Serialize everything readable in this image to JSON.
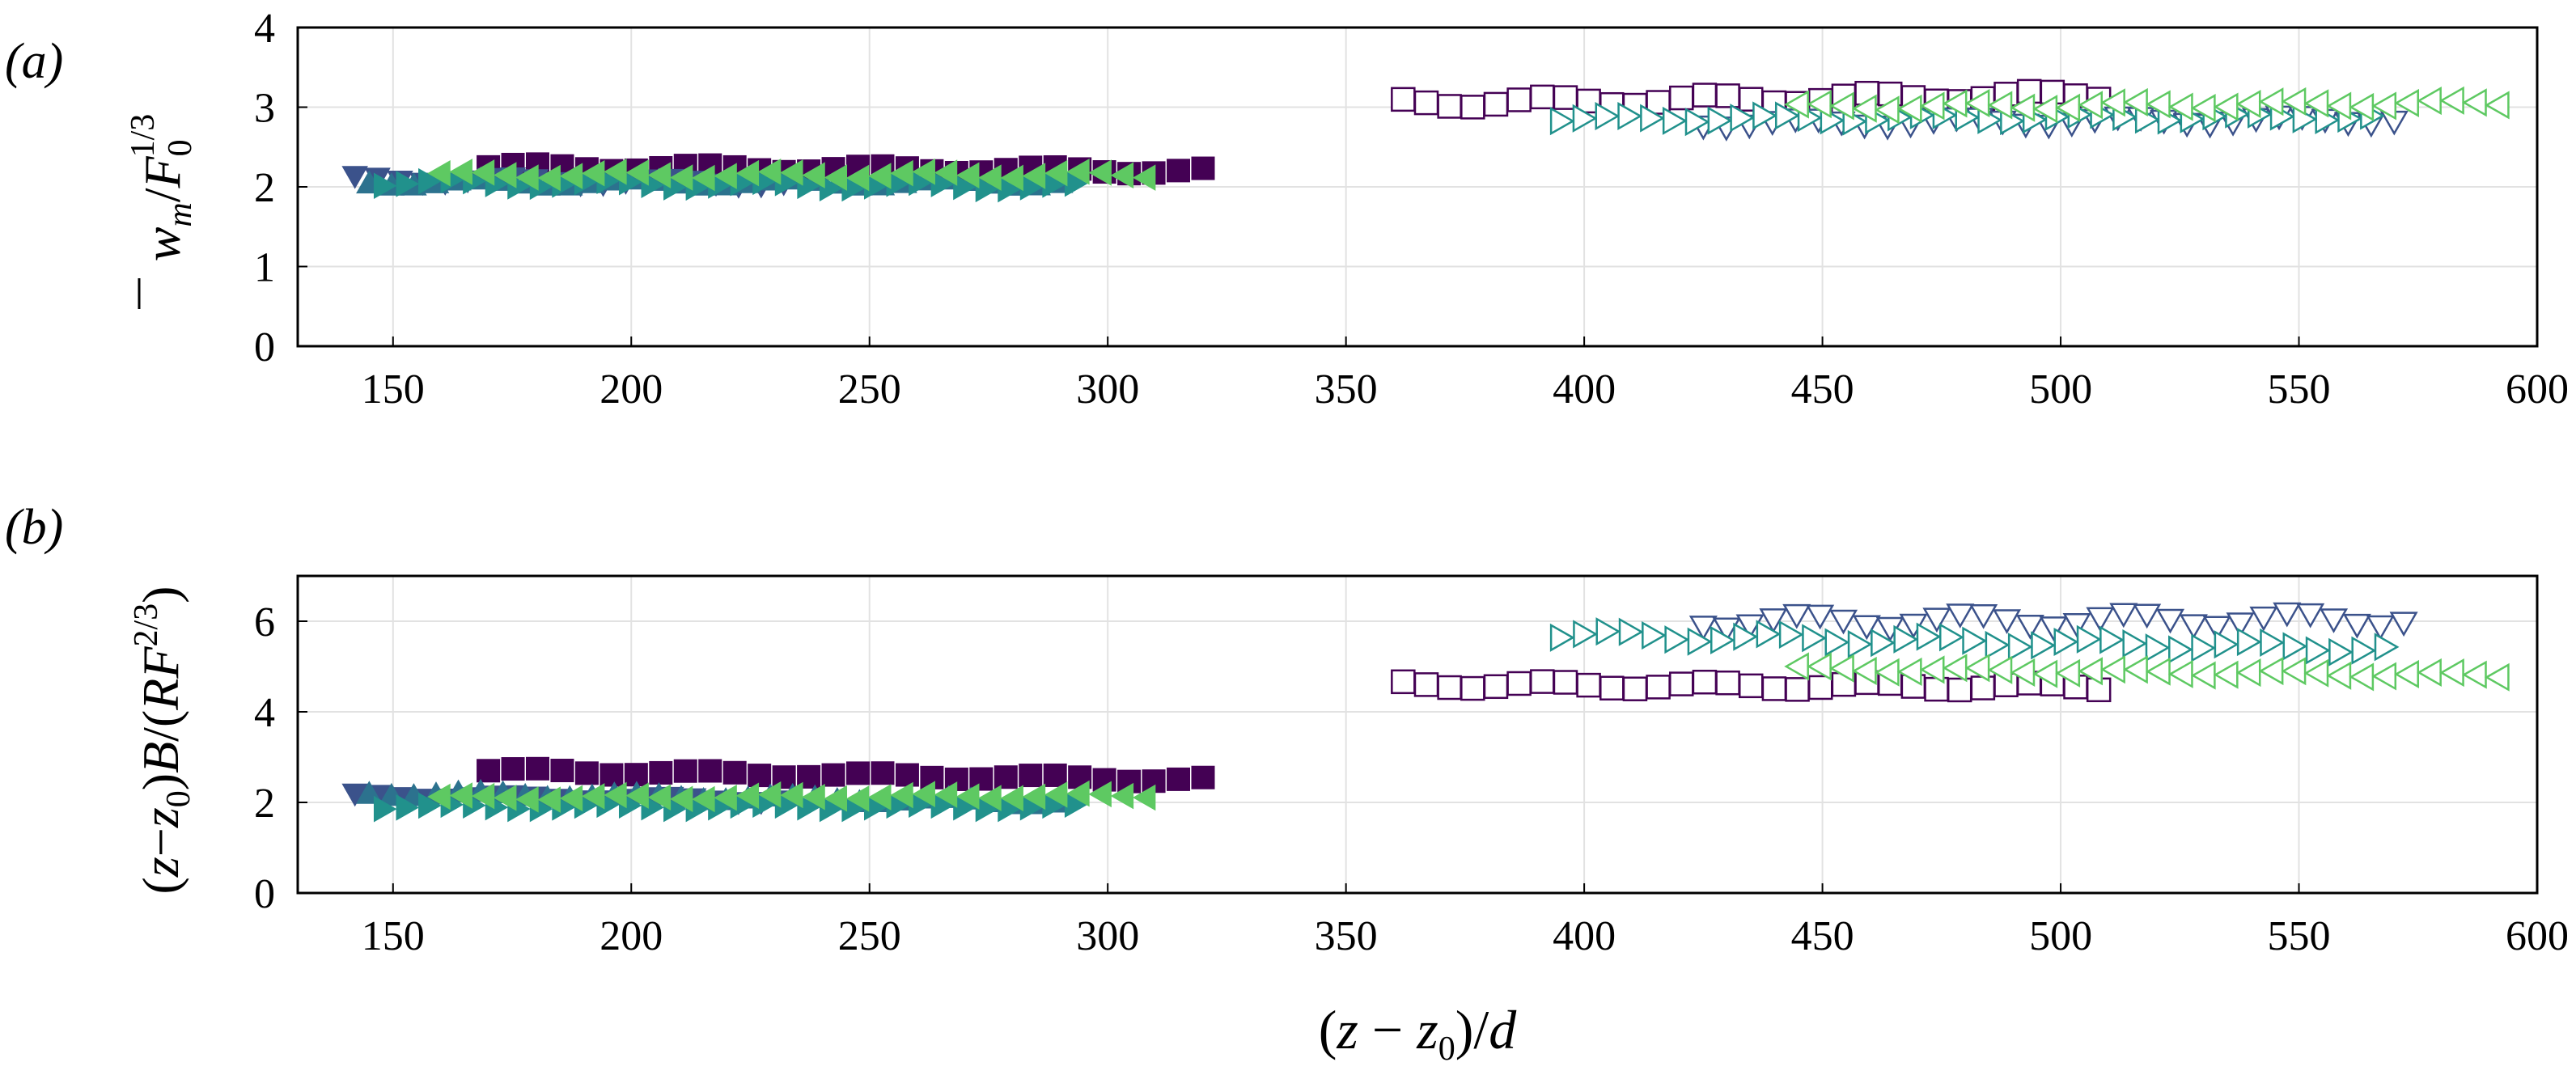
{
  "chart_data": [
    {
      "type": "scatter",
      "panel_label": "(a)",
      "ylabel": {
        "w": "w",
        "m": "m",
        "F": "F",
        "zero": "0",
        "pow": "1/3"
      },
      "xlim": [
        130,
        600
      ],
      "ylim": [
        0,
        4
      ],
      "xticks": [
        150,
        200,
        250,
        300,
        350,
        400,
        450,
        500,
        550,
        600
      ],
      "yticks": [
        0,
        1,
        2,
        3,
        4
      ],
      "grid": true,
      "series": [
        {
          "name": "filled-square",
          "marker": "square",
          "filled": true,
          "color": "#440154",
          "x_start": 170,
          "x_end": 320,
          "count": 30,
          "y_start": 2.25,
          "y_end": 2.2,
          "wobble": 0.04
        },
        {
          "name": "filled-triangle-down",
          "marker": "triangle-down",
          "filled": true,
          "color": "#3b528b",
          "x_start": 142,
          "x_end": 232,
          "count": 20,
          "y_start": 2.1,
          "y_end": 2.05,
          "wobble": 0.04
        },
        {
          "name": "filled-triangle-up",
          "marker": "triangle-up",
          "filled": true,
          "color": "#2c728e",
          "x_start": 145,
          "x_end": 290,
          "count": 32,
          "y_start": 2.05,
          "y_end": 2.05,
          "wobble": 0.04
        },
        {
          "name": "filled-triangle-right",
          "marker": "triangle-right",
          "filled": true,
          "color": "#21918c",
          "x_start": 148,
          "x_end": 293,
          "count": 32,
          "y_start": 2.05,
          "y_end": 2.0,
          "wobble": 0.04
        },
        {
          "name": "filled-triangle-left",
          "marker": "triangle-left",
          "filled": true,
          "color": "#5ec962",
          "x_start": 160,
          "x_end": 308,
          "count": 33,
          "y_start": 2.15,
          "y_end": 2.15,
          "wobble": 0.04
        },
        {
          "name": "open-square",
          "marker": "square",
          "filled": false,
          "color": "#440154",
          "x_start": 362,
          "x_end": 508,
          "count": 31,
          "y_start": 3.05,
          "y_end": 3.15,
          "wobble": 0.06
        },
        {
          "name": "open-triangle-down",
          "marker": "triangle-down",
          "filled": false,
          "color": "#3b528b",
          "x_start": 425,
          "x_end": 570,
          "count": 31,
          "y_start": 2.8,
          "y_end": 2.85,
          "wobble": 0.05
        },
        {
          "name": "open-triangle-right",
          "marker": "triangle-right",
          "filled": false,
          "color": "#21918c",
          "x_start": 395,
          "x_end": 565,
          "count": 37,
          "y_start": 2.85,
          "y_end": 2.88,
          "wobble": 0.04
        },
        {
          "name": "open-triangle-left",
          "marker": "triangle-left",
          "filled": false,
          "color": "#5ec962",
          "x_start": 445,
          "x_end": 592,
          "count": 32,
          "y_start": 3.0,
          "y_end": 3.05,
          "wobble": 0.04
        }
      ]
    },
    {
      "type": "scatter",
      "panel_label": "(b)",
      "ylabel": {
        "open": "(",
        "z": "z",
        "minus": "−",
        "zsub": "z",
        "zero": "0",
        "close": ")",
        "B": "B",
        "slash": "/(",
        "RF": "RF",
        "pow": "2/3",
        "end": ")"
      },
      "xlabel": {
        "open": "(",
        "z": "z",
        "minus": " − ",
        "zsub": "z",
        "zero": "0",
        "close": ")/",
        "d": "d"
      },
      "xlim": [
        130,
        600
      ],
      "ylim": [
        0,
        7
      ],
      "xticks": [
        150,
        200,
        250,
        300,
        350,
        400,
        450,
        500,
        550,
        600
      ],
      "yticks": [
        0,
        2,
        4,
        6
      ],
      "grid": true,
      "series": [
        {
          "name": "filled-square",
          "marker": "square",
          "filled": true,
          "color": "#440154",
          "x_start": 170,
          "x_end": 320,
          "count": 30,
          "y_start": 2.7,
          "y_end": 2.5,
          "wobble": 0.06
        },
        {
          "name": "filled-triangle-down",
          "marker": "triangle-down",
          "filled": true,
          "color": "#3b528b",
          "x_start": 142,
          "x_end": 232,
          "count": 20,
          "y_start": 2.15,
          "y_end": 2.05,
          "wobble": 0.05
        },
        {
          "name": "filled-triangle-up",
          "marker": "triangle-up",
          "filled": true,
          "color": "#2c728e",
          "x_start": 145,
          "x_end": 290,
          "count": 32,
          "y_start": 2.2,
          "y_end": 2.0,
          "wobble": 0.06
        },
        {
          "name": "filled-triangle-right",
          "marker": "triangle-right",
          "filled": true,
          "color": "#21918c",
          "x_start": 148,
          "x_end": 293,
          "count": 32,
          "y_start": 1.9,
          "y_end": 1.9,
          "wobble": 0.05
        },
        {
          "name": "filled-triangle-left",
          "marker": "triangle-left",
          "filled": true,
          "color": "#5ec962",
          "x_start": 160,
          "x_end": 308,
          "count": 33,
          "y_start": 2.1,
          "y_end": 2.15,
          "wobble": 0.05
        },
        {
          "name": "open-square",
          "marker": "square",
          "filled": false,
          "color": "#440154",
          "x_start": 362,
          "x_end": 508,
          "count": 31,
          "y_start": 4.6,
          "y_end": 4.55,
          "wobble": 0.08
        },
        {
          "name": "open-triangle-down",
          "marker": "triangle-down",
          "filled": false,
          "color": "#3b528b",
          "x_start": 425,
          "x_end": 572,
          "count": 31,
          "y_start": 6.0,
          "y_end": 6.05,
          "wobble": 0.15
        },
        {
          "name": "open-triangle-right",
          "marker": "triangle-right",
          "filled": false,
          "color": "#21918c",
          "x_start": 395,
          "x_end": 568,
          "count": 37,
          "y_start": 5.7,
          "y_end": 5.4,
          "wobble": 0.1
        },
        {
          "name": "open-triangle-left",
          "marker": "triangle-left",
          "filled": false,
          "color": "#5ec962",
          "x_start": 445,
          "x_end": 592,
          "count": 32,
          "y_start": 4.95,
          "y_end": 4.8,
          "wobble": 0.06
        }
      ]
    }
  ]
}
